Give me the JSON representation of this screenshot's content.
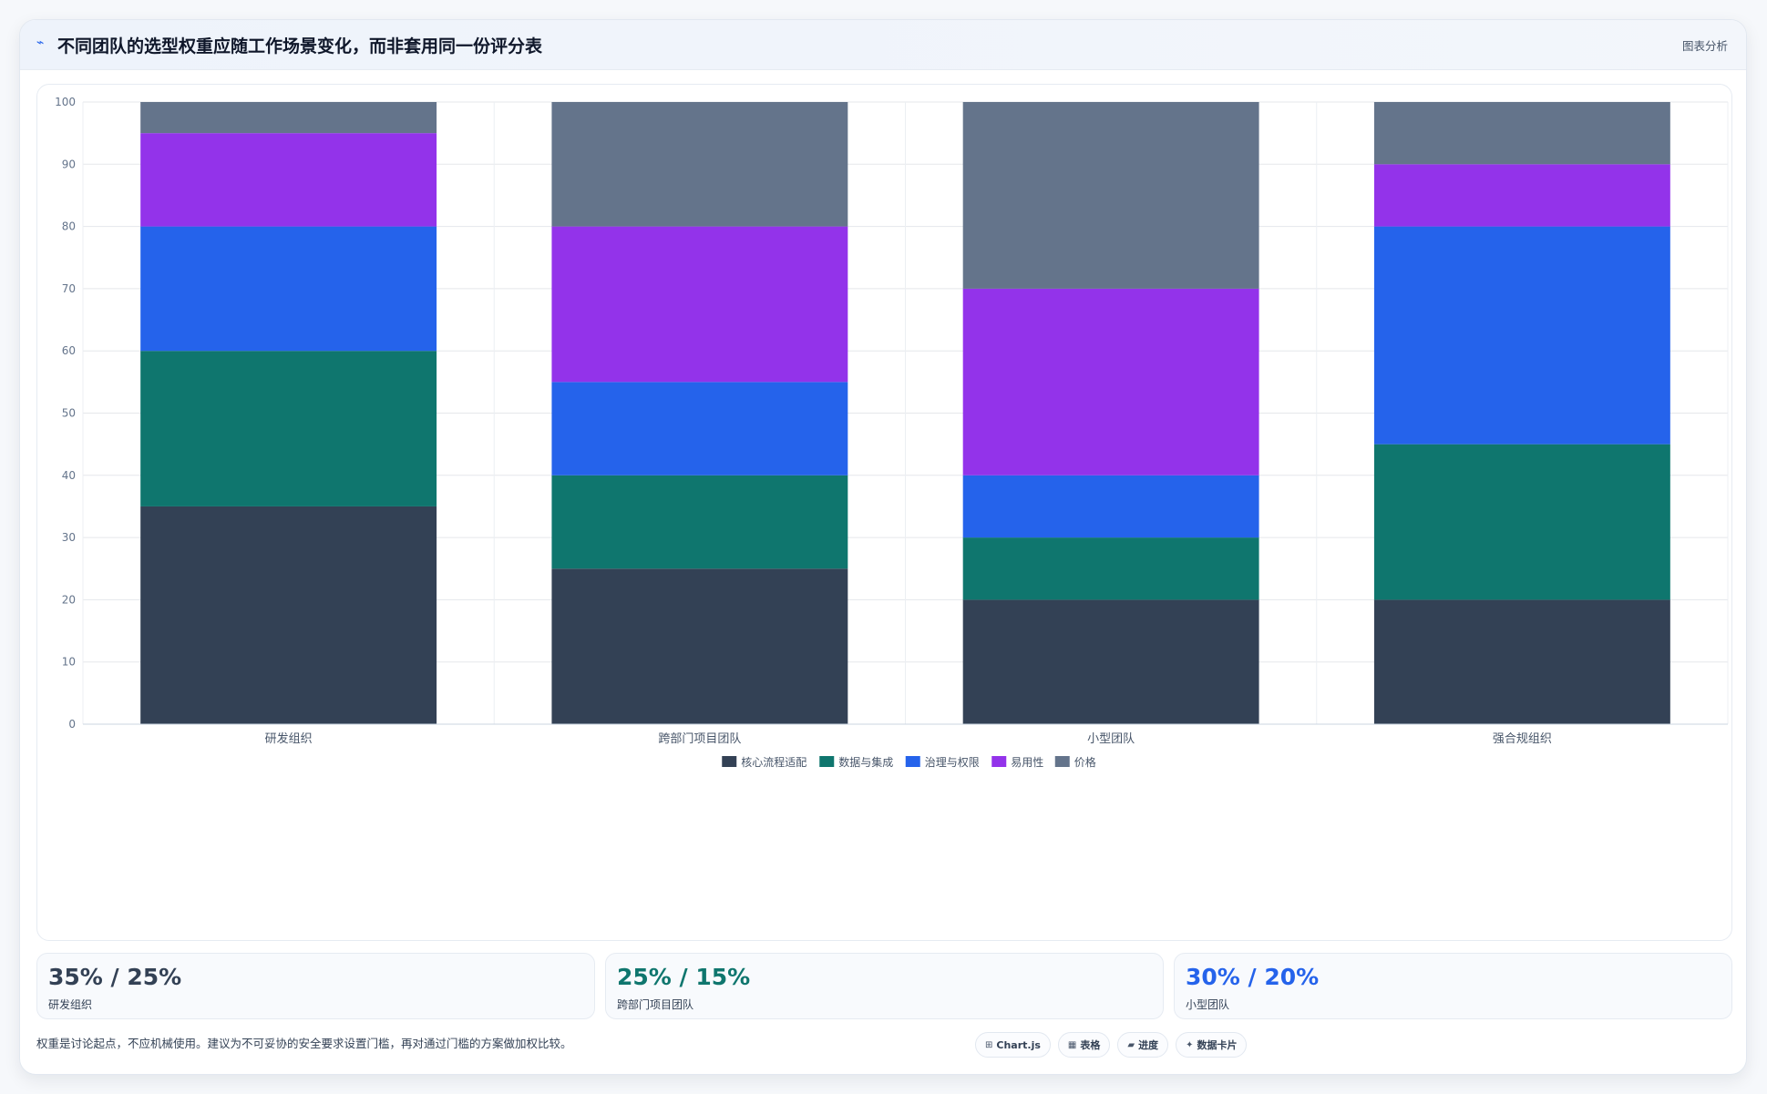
{
  "header": {
    "icon": "sparkline-icon",
    "title": "不同团队的选型权重应随工作场景变化，而非套用同一份评分表",
    "tag": "图表分析"
  },
  "chart_data": {
    "type": "bar",
    "stacked": true,
    "categories": [
      "研发组织",
      "跨部门项目团队",
      "小型团队",
      "强合规组织"
    ],
    "series": [
      {
        "name": "核心流程适配",
        "color": "#334155",
        "values": [
          35,
          25,
          20,
          20
        ]
      },
      {
        "name": "数据与集成",
        "color": "#0f766e",
        "values": [
          25,
          15,
          10,
          25
        ]
      },
      {
        "name": "治理与权限",
        "color": "#2563eb",
        "values": [
          20,
          15,
          10,
          35
        ]
      },
      {
        "name": "易用性",
        "color": "#9333ea",
        "values": [
          15,
          25,
          30,
          10
        ]
      },
      {
        "name": "价格",
        "color": "#64748b",
        "values": [
          5,
          20,
          30,
          10
        ]
      }
    ],
    "ylim": [
      0,
      100
    ],
    "yticks": [
      "0",
      "10",
      "20",
      "30",
      "40",
      "50",
      "60",
      "70",
      "80",
      "90",
      "100"
    ],
    "grid": true,
    "legend_position": "bottom"
  },
  "stats": [
    {
      "value": "35% / 25%",
      "label": "研发组织",
      "color": "#334155"
    },
    {
      "value": "25% / 15%",
      "label": "跨部门项目团队",
      "color": "#0f766e"
    },
    {
      "value": "30% / 20%",
      "label": "小型团队",
      "color": "#2563eb"
    }
  ],
  "footer": {
    "note": "权重是讨论起点，不应机械使用。建议为不可妥协的安全要求设置门槛，再对通过门槛的方案做加权比较。",
    "badges": [
      {
        "icon": "chart-icon",
        "glyph": "⊞",
        "label": "Chart.js"
      },
      {
        "icon": "table-icon",
        "glyph": "▦",
        "label": "表格"
      },
      {
        "icon": "progress-icon",
        "glyph": "▰",
        "label": "进度"
      },
      {
        "icon": "card-icon",
        "glyph": "✦",
        "label": "数据卡片"
      }
    ]
  }
}
